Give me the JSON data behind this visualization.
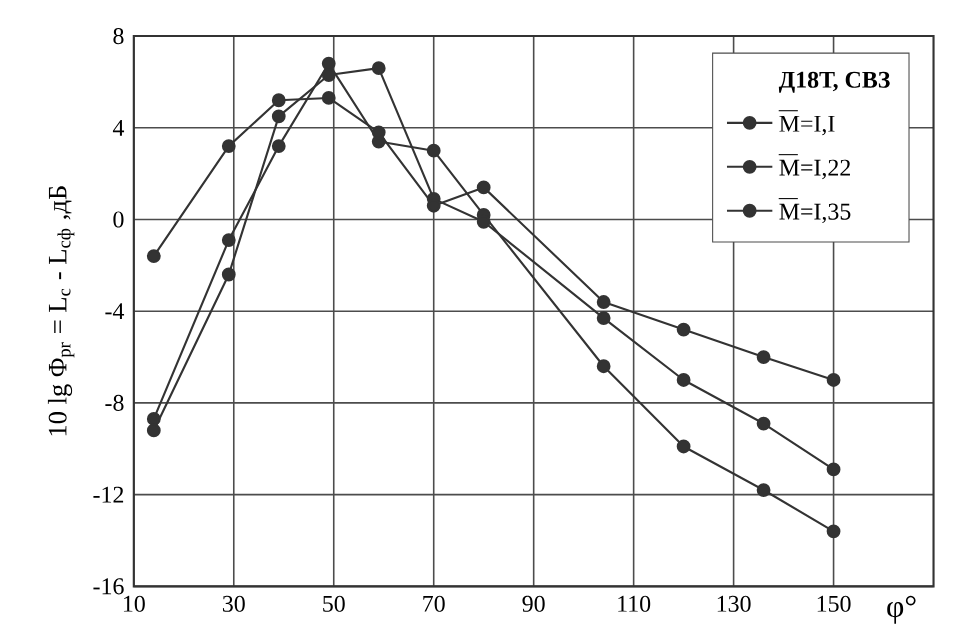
{
  "chart_data": {
    "type": "line",
    "legend_title": "Д18Т,  СВЗ",
    "ylabel": "10 lg Φ$_{pr}$ = L$_{c}$ - L$_{cф}$ ,дБ",
    "xlabel": "φ°",
    "xlim": [
      10,
      170
    ],
    "xticks": [
      10,
      30,
      50,
      70,
      90,
      110,
      130,
      150
    ],
    "ylim": [
      -16,
      8
    ],
    "yticks": [
      -16,
      -12,
      -8,
      -4,
      0,
      4,
      8
    ],
    "grid": true,
    "legend": "top right",
    "marker": "circle",
    "line_style": "solid",
    "series": [
      {
        "name": "M=I,I",
        "color": "#333333",
        "x": [
          14,
          29,
          39,
          49,
          59,
          70,
          80,
          104,
          120,
          136,
          150
        ],
        "values": [
          -8.7,
          -0.9,
          3.2,
          6.8,
          3.4,
          3.0,
          0.2,
          -6.4,
          -9.9,
          -11.8,
          -13.6
        ]
      },
      {
        "name": "M=I,22",
        "color": "#333333",
        "x": [
          14,
          29,
          39,
          49,
          59,
          70,
          80,
          104,
          120,
          136,
          150
        ],
        "values": [
          -9.2,
          -2.4,
          4.5,
          6.3,
          6.6,
          0.9,
          -0.1,
          -4.3,
          -7.0,
          -8.9,
          -10.9
        ]
      },
      {
        "name": "M=I,35",
        "color": "#333333",
        "x": [
          14,
          29,
          39,
          49,
          59,
          70,
          80,
          104,
          120,
          136,
          150
        ],
        "values": [
          -1.6,
          3.2,
          5.2,
          5.3,
          3.8,
          0.6,
          1.4,
          -3.6,
          -4.8,
          -6.0,
          -7.0
        ]
      }
    ]
  }
}
